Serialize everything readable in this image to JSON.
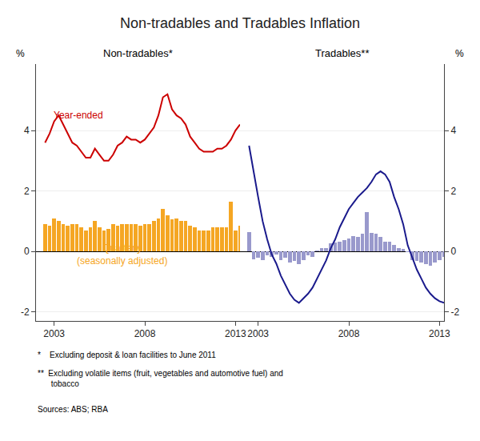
{
  "title": "Non-tradables and Tradables Inflation",
  "annotations": [
    "*    Excluding deposit & loan facilities to June 2011",
    "**  Excluding volatile items (fruit, vegetables and automotive fuel) and\n      tobacco",
    "Sources: ABS; RBA"
  ],
  "chart_data": [
    {
      "type": "bar",
      "title": "Non-tradables*",
      "ylabel": "%",
      "x": [
        2002.5,
        2002.75,
        2003,
        2003.25,
        2003.5,
        2003.75,
        2004,
        2004.25,
        2004.5,
        2004.75,
        2005,
        2005.25,
        2005.5,
        2005.75,
        2006,
        2006.25,
        2006.5,
        2006.75,
        2007,
        2007.25,
        2007.5,
        2007.75,
        2008,
        2008.25,
        2008.5,
        2008.75,
        2009,
        2009.25,
        2009.5,
        2009.75,
        2010,
        2010.25,
        2010.5,
        2010.75,
        2011,
        2011.25,
        2011.5,
        2011.75,
        2012,
        2012.25,
        2012.5,
        2012.75,
        2013,
        2013.25
      ],
      "xlim": [
        2002.0,
        2013.25
      ],
      "xticks": [
        2003,
        2008,
        2013
      ],
      "ylim": [
        -2.3,
        6.2
      ],
      "yticks": [
        -2,
        0,
        2,
        4
      ],
      "grid": true,
      "series": [
        {
          "name": "Quarterly\n(seasonally adjusted)",
          "type": "bar",
          "color": "#f5a623",
          "values": [
            0.9,
            0.85,
            1.1,
            1.0,
            0.9,
            0.85,
            0.9,
            0.9,
            0.8,
            0.7,
            0.8,
            1.0,
            0.8,
            0.7,
            0.75,
            0.9,
            0.85,
            0.9,
            0.9,
            0.9,
            0.9,
            0.85,
            0.9,
            0.9,
            1.0,
            1.1,
            1.4,
            1.2,
            1.05,
            1.1,
            1.0,
            1.0,
            0.85,
            0.8,
            0.7,
            0.7,
            0.7,
            0.8,
            0.8,
            0.8,
            0.8,
            1.65,
            0.7,
            0.85
          ]
        },
        {
          "name": "Year-ended",
          "type": "line",
          "color": "#cc0000",
          "values": [
            3.6,
            3.9,
            4.3,
            4.5,
            4.2,
            3.9,
            3.6,
            3.5,
            3.3,
            3.1,
            3.1,
            3.4,
            3.2,
            3.0,
            3.0,
            3.2,
            3.5,
            3.6,
            3.8,
            3.7,
            3.7,
            3.6,
            3.7,
            3.9,
            4.1,
            4.5,
            5.1,
            5.2,
            4.7,
            4.5,
            4.4,
            4.2,
            3.8,
            3.6,
            3.4,
            3.3,
            3.3,
            3.3,
            3.4,
            3.4,
            3.5,
            3.7,
            4.0,
            4.2
          ]
        }
      ]
    },
    {
      "type": "bar",
      "title": "Tradables**",
      "ylabel": "%",
      "x": [
        2002.5,
        2002.75,
        2003,
        2003.25,
        2003.5,
        2003.75,
        2004,
        2004.25,
        2004.5,
        2004.75,
        2005,
        2005.25,
        2005.5,
        2005.75,
        2006,
        2006.25,
        2006.5,
        2006.75,
        2007,
        2007.25,
        2007.5,
        2007.75,
        2008,
        2008.25,
        2008.5,
        2008.75,
        2009,
        2009.25,
        2009.5,
        2009.75,
        2010,
        2010.25,
        2010.5,
        2010.75,
        2011,
        2011.25,
        2011.5,
        2011.75,
        2012,
        2012.25,
        2012.5,
        2012.75,
        2013,
        2013.25
      ],
      "xlim": [
        2002.0,
        2013.25
      ],
      "xticks": [
        2003,
        2008,
        2013
      ],
      "ylim": [
        -2.3,
        6.2
      ],
      "yticks": [
        -2,
        0,
        2,
        4
      ],
      "grid": true,
      "series": [
        {
          "type": "bar",
          "color": "#9999cc",
          "values": [
            0.65,
            -0.25,
            -0.2,
            -0.28,
            -0.12,
            -0.18,
            -0.1,
            -0.28,
            -0.22,
            -0.38,
            -0.32,
            -0.42,
            -0.28,
            -0.12,
            -0.18,
            0.02,
            0.1,
            0.12,
            0.28,
            0.3,
            0.32,
            0.38,
            0.42,
            0.52,
            0.48,
            0.58,
            1.3,
            0.62,
            0.58,
            0.48,
            0.32,
            0.32,
            0.22,
            0.12,
            0.08,
            -0.02,
            -0.28,
            -0.32,
            -0.38,
            -0.42,
            -0.48,
            -0.38,
            -0.28,
            -0.18
          ]
        },
        {
          "type": "line",
          "color": "#1a1a8c",
          "values": [
            3.5,
            2.6,
            1.8,
            1.0,
            0.4,
            -0.1,
            -0.4,
            -0.8,
            -1.1,
            -1.4,
            -1.6,
            -1.7,
            -1.55,
            -1.4,
            -1.2,
            -0.9,
            -0.6,
            -0.3,
            0.1,
            0.4,
            0.8,
            1.1,
            1.4,
            1.6,
            1.8,
            1.95,
            2.1,
            2.3,
            2.55,
            2.65,
            2.55,
            2.3,
            1.8,
            1.4,
            0.9,
            0.2,
            -0.2,
            -0.6,
            -0.9,
            -1.2,
            -1.4,
            -1.55,
            -1.65,
            -1.7
          ]
        }
      ]
    }
  ]
}
